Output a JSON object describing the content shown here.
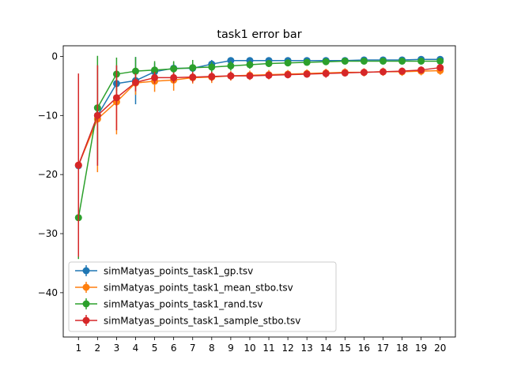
{
  "chart_data": {
    "type": "line",
    "title": "task1 error bar",
    "xlabel": "",
    "ylabel": "",
    "x": [
      1,
      2,
      3,
      4,
      5,
      6,
      7,
      8,
      9,
      10,
      11,
      12,
      13,
      14,
      15,
      16,
      17,
      18,
      19,
      20
    ],
    "xlim": [
      0.2,
      20.8
    ],
    "ylim": [
      -47.5,
      1.8
    ],
    "yticks": [
      0,
      -10,
      -20,
      -30,
      -40
    ],
    "grid": false,
    "legend_position": "lower-left",
    "series": [
      {
        "name": "simMatyas_points_task1_gp.tsv",
        "color": "#1f77b4",
        "values": [
          -18.5,
          -10.0,
          -4.6,
          -4.1,
          -2.6,
          -2.0,
          -2.0,
          -1.3,
          -0.7,
          -0.7,
          -0.7,
          -0.7,
          -0.7,
          -0.7,
          -0.7,
          -0.6,
          -0.6,
          -0.6,
          -0.5,
          -0.5
        ],
        "errors": [
          8.0,
          8.5,
          3.0,
          4.0,
          1.5,
          1.0,
          0.9,
          0.7,
          0.4,
          0.3,
          0.3,
          0.3,
          0.3,
          0.3,
          0.3,
          0.3,
          0.3,
          0.3,
          0.3,
          0.3
        ]
      },
      {
        "name": "simMatyas_points_task1_mean_stbo.tsv",
        "color": "#ff7f0e",
        "values": [
          -18.4,
          -10.6,
          -7.7,
          -4.5,
          -4.2,
          -4.0,
          -3.6,
          -3.5,
          -3.3,
          -3.2,
          -3.1,
          -3.0,
          -2.9,
          -2.8,
          -2.7,
          -2.7,
          -2.6,
          -2.6,
          -2.5,
          -2.4
        ],
        "errors": [
          9.0,
          9.0,
          5.5,
          2.0,
          1.8,
          1.8,
          1.0,
          1.0,
          0.8,
          0.8,
          0.8,
          0.7,
          0.7,
          0.7,
          0.7,
          0.7,
          0.7,
          0.7,
          0.7,
          0.7
        ]
      },
      {
        "name": "simMatyas_points_task1_rand.tsv",
        "color": "#2ca02c",
        "values": [
          -27.3,
          -8.7,
          -3.0,
          -2.5,
          -2.3,
          -2.1,
          -1.9,
          -1.8,
          -1.6,
          -1.4,
          -1.2,
          -1.1,
          -1.0,
          -0.9,
          -0.8,
          -0.8,
          -0.8,
          -0.8,
          -0.8,
          -0.8
        ],
        "errors": [
          7.0,
          8.8,
          2.8,
          2.4,
          1.5,
          1.3,
          1.3,
          0.9,
          0.8,
          0.7,
          0.6,
          0.5,
          0.5,
          0.5,
          0.4,
          0.4,
          0.4,
          0.4,
          0.4,
          0.4
        ]
      },
      {
        "name": "simMatyas_points_task1_sample_stbo.tsv",
        "color": "#d62728",
        "values": [
          -18.4,
          -10.0,
          -7.0,
          -4.4,
          -3.6,
          -3.6,
          -3.5,
          -3.4,
          -3.3,
          -3.3,
          -3.2,
          -3.1,
          -3.0,
          -2.9,
          -2.8,
          -2.7,
          -2.6,
          -2.5,
          -2.3,
          -1.9
        ],
        "errors": [
          15.5,
          8.5,
          5.5,
          1.5,
          1.0,
          0.9,
          0.9,
          0.8,
          0.7,
          0.6,
          0.6,
          0.6,
          0.6,
          0.7,
          0.6,
          0.6,
          0.6,
          0.6,
          0.6,
          0.6
        ]
      }
    ]
  }
}
